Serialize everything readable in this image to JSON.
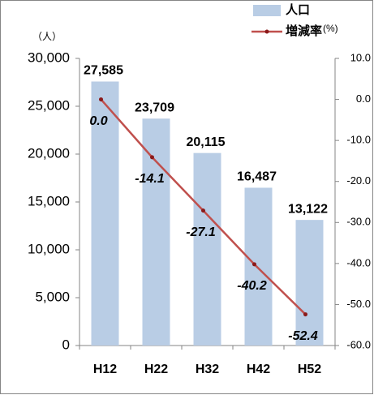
{
  "chart_data": {
    "type": "bar_line",
    "y_unit": "（人）",
    "y2_unit": "(%)",
    "categories": [
      "H12",
      "H22",
      "H32",
      "H42",
      "H52"
    ],
    "series": [
      {
        "name": "人口",
        "type": "bar",
        "color": "#b9cde5",
        "values": [
          27585,
          23709,
          20115,
          16487,
          13122
        ],
        "value_labels": [
          "27,585",
          "23,709",
          "20,115",
          "16,487",
          "13,122"
        ]
      },
      {
        "name": "増減率",
        "type": "line",
        "axis": "y2",
        "color": "#c0504d",
        "values": [
          0.0,
          -14.1,
          -27.1,
          -40.2,
          -52.4
        ],
        "value_labels": [
          "0.0",
          "-14.1",
          "-27.1",
          "-40.2",
          "-52.4"
        ]
      }
    ],
    "ylim": [
      0,
      30000
    ],
    "yticks": [
      0,
      {
        "value": 5000,
        "label": "5,000"
      },
      {
        "value": 10000,
        "label": "10,000"
      },
      {
        "value": 15000,
        "label": "15,000"
      },
      {
        "value": 20000,
        "label": "20,000"
      },
      {
        "value": 25000,
        "label": "25,000"
      },
      {
        "value": 30000,
        "label": "30,000"
      }
    ],
    "y2lim": [
      -60,
      10
    ],
    "y2ticks": [
      {
        "value": -60,
        "label": "-60.0"
      },
      {
        "value": -50,
        "label": "-50.0"
      },
      {
        "value": -40,
        "label": "-40.0"
      },
      {
        "value": -30,
        "label": "-30.0"
      },
      {
        "value": -20,
        "label": "-20.0"
      },
      {
        "value": -10,
        "label": "-10.0"
      },
      {
        "value": 0,
        "label": "0.0"
      },
      {
        "value": 10,
        "label": "10.0"
      }
    ],
    "grid": false,
    "legend": "top-right"
  }
}
